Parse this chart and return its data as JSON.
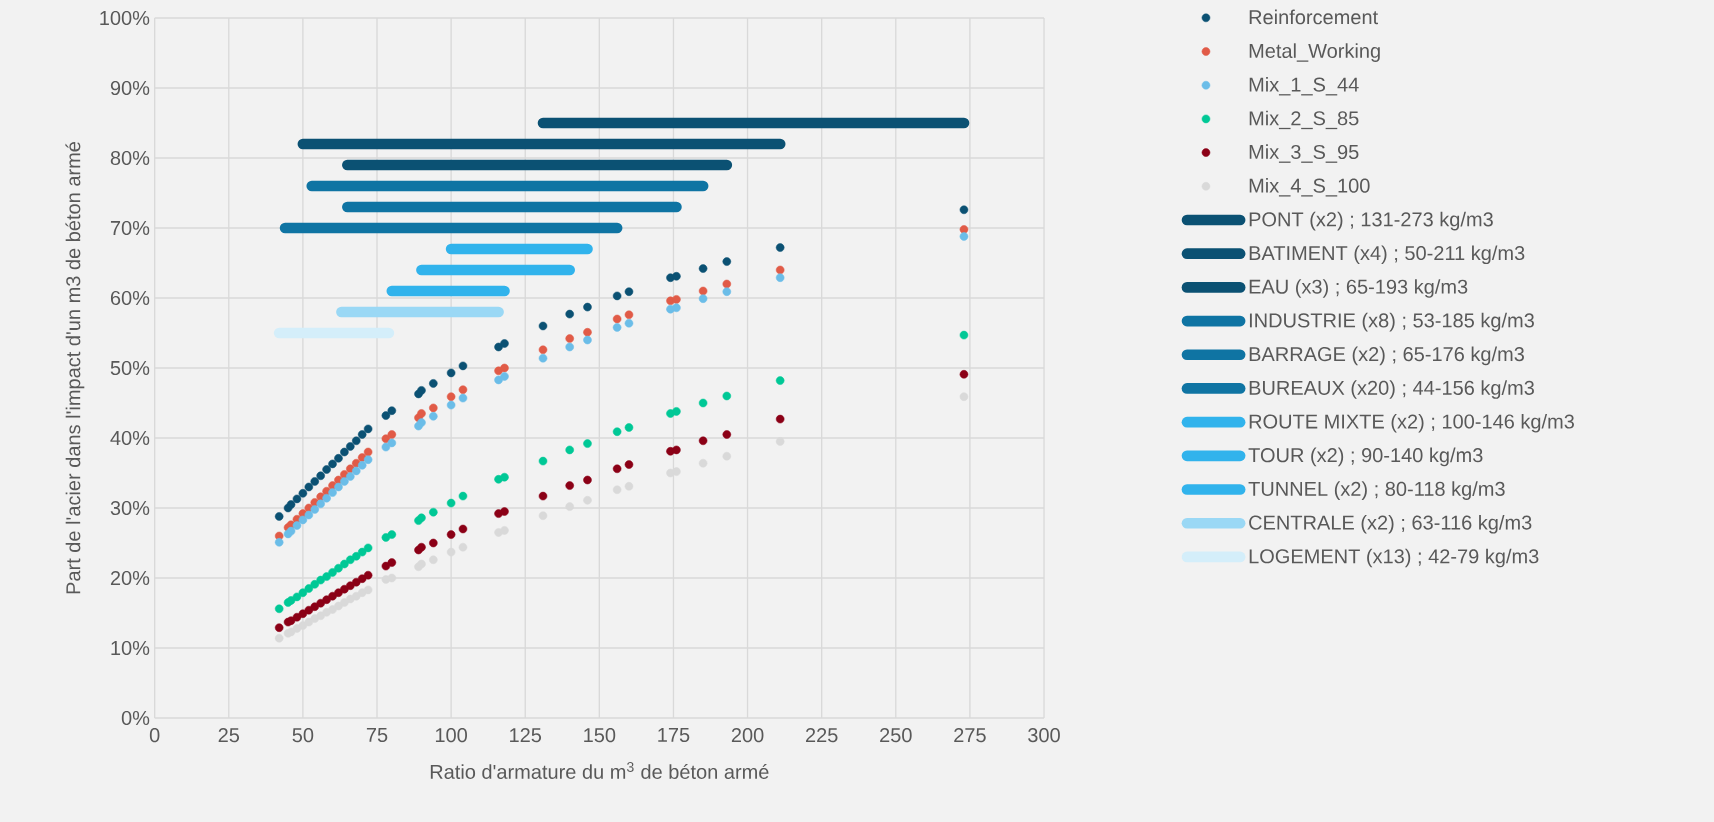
{
  "chart_data": {
    "type": "scatter",
    "xlabel": "Ratio d'armature du m$^{3}$ de béton armé",
    "ylabel": "Part de l'acier dans l'impact d'un m3 de béton armé",
    "xlim": [
      0,
      300
    ],
    "xticks": [
      0,
      25,
      50,
      75,
      100,
      125,
      150,
      175,
      200,
      225,
      250,
      275,
      300
    ],
    "ylim": [
      0,
      100
    ],
    "yticks": [
      {
        "value": 0,
        "label": "0%"
      },
      {
        "value": 10,
        "label": "10%"
      },
      {
        "value": 20,
        "label": "20%"
      },
      {
        "value": 30,
        "label": "30%"
      },
      {
        "value": 40,
        "label": "40%"
      },
      {
        "value": 50,
        "label": "50%"
      },
      {
        "value": 60,
        "label": "60%"
      },
      {
        "value": 70,
        "label": "70%"
      },
      {
        "value": 80,
        "label": "80%"
      },
      {
        "value": 90,
        "label": "90%"
      },
      {
        "value": 100,
        "label": "100%"
      }
    ],
    "grid": true,
    "legend": "right",
    "x": [
      42,
      45,
      46,
      48,
      50,
      52,
      54,
      56,
      58,
      60,
      62,
      64,
      66,
      68,
      70,
      72,
      78,
      80,
      89,
      90,
      94,
      100,
      104,
      116,
      118,
      131,
      140,
      146,
      156,
      160,
      174,
      176,
      185,
      193,
      211,
      273
    ],
    "series": [
      {
        "name": "Reinforcement",
        "color": "#0b5173",
        "marker": "circle",
        "values": [
          28.8,
          30.0,
          30.5,
          31.3,
          32.1,
          33.0,
          33.8,
          34.6,
          35.5,
          36.3,
          37.1,
          38.0,
          38.8,
          39.6,
          40.5,
          41.3,
          43.2,
          43.9,
          46.3,
          46.8,
          47.8,
          49.3,
          50.3,
          53.0,
          53.5,
          56.0,
          57.7,
          58.7,
          60.3,
          60.9,
          62.9,
          63.1,
          64.2,
          65.2,
          67.2,
          72.6
        ]
      },
      {
        "name": "Metal_Working",
        "color": "#e15b47",
        "marker": "circle",
        "values": [
          26.0,
          27.2,
          27.6,
          28.4,
          29.2,
          30.0,
          30.8,
          31.6,
          32.4,
          33.2,
          34.0,
          34.8,
          35.6,
          36.4,
          37.2,
          38.0,
          39.9,
          40.5,
          42.9,
          43.5,
          44.3,
          45.9,
          46.9,
          49.6,
          50.0,
          52.6,
          54.2,
          55.1,
          57.0,
          57.6,
          59.6,
          59.8,
          61.0,
          62.0,
          64.0,
          69.8
        ]
      },
      {
        "name": "Mix_1_S_44",
        "color": "#6bbde8",
        "marker": "circle",
        "values": [
          25.1,
          26.3,
          26.7,
          27.5,
          28.3,
          29.0,
          29.8,
          30.6,
          31.4,
          32.2,
          33.0,
          33.8,
          34.5,
          35.3,
          36.1,
          36.9,
          38.7,
          39.3,
          41.7,
          42.2,
          43.1,
          44.7,
          45.7,
          48.3,
          48.8,
          51.4,
          53.0,
          54.0,
          55.8,
          56.4,
          58.4,
          58.6,
          59.9,
          60.9,
          62.9,
          68.8
        ]
      },
      {
        "name": "Mix_2_S_85",
        "color": "#00c896",
        "marker": "circle",
        "values": [
          15.6,
          16.5,
          16.8,
          17.3,
          17.9,
          18.5,
          19.1,
          19.7,
          20.2,
          20.8,
          21.4,
          22.0,
          22.6,
          23.1,
          23.7,
          24.3,
          25.8,
          26.2,
          28.2,
          28.6,
          29.4,
          30.7,
          31.7,
          34.1,
          34.4,
          36.7,
          38.3,
          39.2,
          40.9,
          41.5,
          43.5,
          43.8,
          45.0,
          46.0,
          48.2,
          54.7
        ]
      },
      {
        "name": "Mix_3_S_95",
        "color": "#8b0016",
        "marker": "circle",
        "values": [
          12.9,
          13.7,
          13.9,
          14.4,
          14.9,
          15.4,
          15.9,
          16.4,
          16.9,
          17.4,
          17.9,
          18.4,
          18.9,
          19.4,
          19.9,
          20.4,
          21.7,
          22.2,
          24.0,
          24.4,
          25.0,
          26.2,
          27.0,
          29.2,
          29.5,
          31.7,
          33.2,
          34.0,
          35.6,
          36.2,
          38.1,
          38.3,
          39.6,
          40.5,
          42.7,
          49.1
        ]
      },
      {
        "name": "Mix_4_S_100",
        "color": "#d9d9d9",
        "marker": "circle",
        "values": [
          11.4,
          12.1,
          12.3,
          12.8,
          13.2,
          13.7,
          14.2,
          14.6,
          15.1,
          15.5,
          16.0,
          16.5,
          17.0,
          17.4,
          17.9,
          18.3,
          19.8,
          20.0,
          21.6,
          22.0,
          22.6,
          23.7,
          24.4,
          26.5,
          26.8,
          28.9,
          30.2,
          31.1,
          32.6,
          33.1,
          35.0,
          35.2,
          36.4,
          37.4,
          39.5,
          45.9
        ]
      },
      {
        "name": "PONT (x2) ; 131-273 kg/m3",
        "color": "#0b5173",
        "type": "line",
        "marker": "none",
        "x": [
          131,
          273
        ],
        "values": [
          85,
          85
        ]
      },
      {
        "name": "BATIMENT (x4) ; 50-211 kg/m3",
        "color": "#0b5173",
        "type": "line",
        "marker": "none",
        "x": [
          50,
          211
        ],
        "values": [
          82,
          82
        ]
      },
      {
        "name": "EAU (x3) ; 65-193 kg/m3",
        "color": "#0b5173",
        "type": "line",
        "marker": "none",
        "x": [
          65,
          193
        ],
        "values": [
          79,
          79
        ]
      },
      {
        "name": "INDUSTRIE (x8) ; 53-185 kg/m3",
        "color": "#0f74a3",
        "type": "line",
        "marker": "none",
        "x": [
          53,
          185
        ],
        "values": [
          76,
          76
        ]
      },
      {
        "name": "BARRAGE (x2) ; 65-176 kg/m3",
        "color": "#0f74a3",
        "type": "line",
        "marker": "none",
        "x": [
          65,
          176
        ],
        "values": [
          73,
          73
        ]
      },
      {
        "name": "BUREAUX (x20) ; 44-156 kg/m3",
        "color": "#0f74a3",
        "type": "line",
        "marker": "none",
        "x": [
          44,
          156
        ],
        "values": [
          70,
          70
        ]
      },
      {
        "name": "ROUTE MIXTE (x2) ; 100-146 kg/m3",
        "color": "#31b3ec",
        "type": "line",
        "marker": "none",
        "x": [
          100,
          146
        ],
        "values": [
          67,
          67
        ]
      },
      {
        "name": "TOUR (x2) ; 90-140 kg/m3",
        "color": "#31b3ec",
        "type": "line",
        "marker": "none",
        "x": [
          90,
          140
        ],
        "values": [
          64,
          64
        ]
      },
      {
        "name": "TUNNEL (x2) ; 80-118 kg/m3",
        "color": "#31b3ec",
        "type": "line",
        "marker": "none",
        "x": [
          80,
          118
        ],
        "values": [
          61,
          61
        ]
      },
      {
        "name": "CENTRALE (x2) ; 63-116 kg/m3",
        "color": "#9ad8f5",
        "type": "line",
        "marker": "none",
        "x": [
          63,
          116
        ],
        "values": [
          58,
          58
        ]
      },
      {
        "name": "LOGEMENT (x13) ; 42-79 kg/m3",
        "color": "#d4eefa",
        "type": "line",
        "marker": "none",
        "x": [
          42,
          79
        ],
        "values": [
          55,
          55
        ]
      }
    ]
  }
}
